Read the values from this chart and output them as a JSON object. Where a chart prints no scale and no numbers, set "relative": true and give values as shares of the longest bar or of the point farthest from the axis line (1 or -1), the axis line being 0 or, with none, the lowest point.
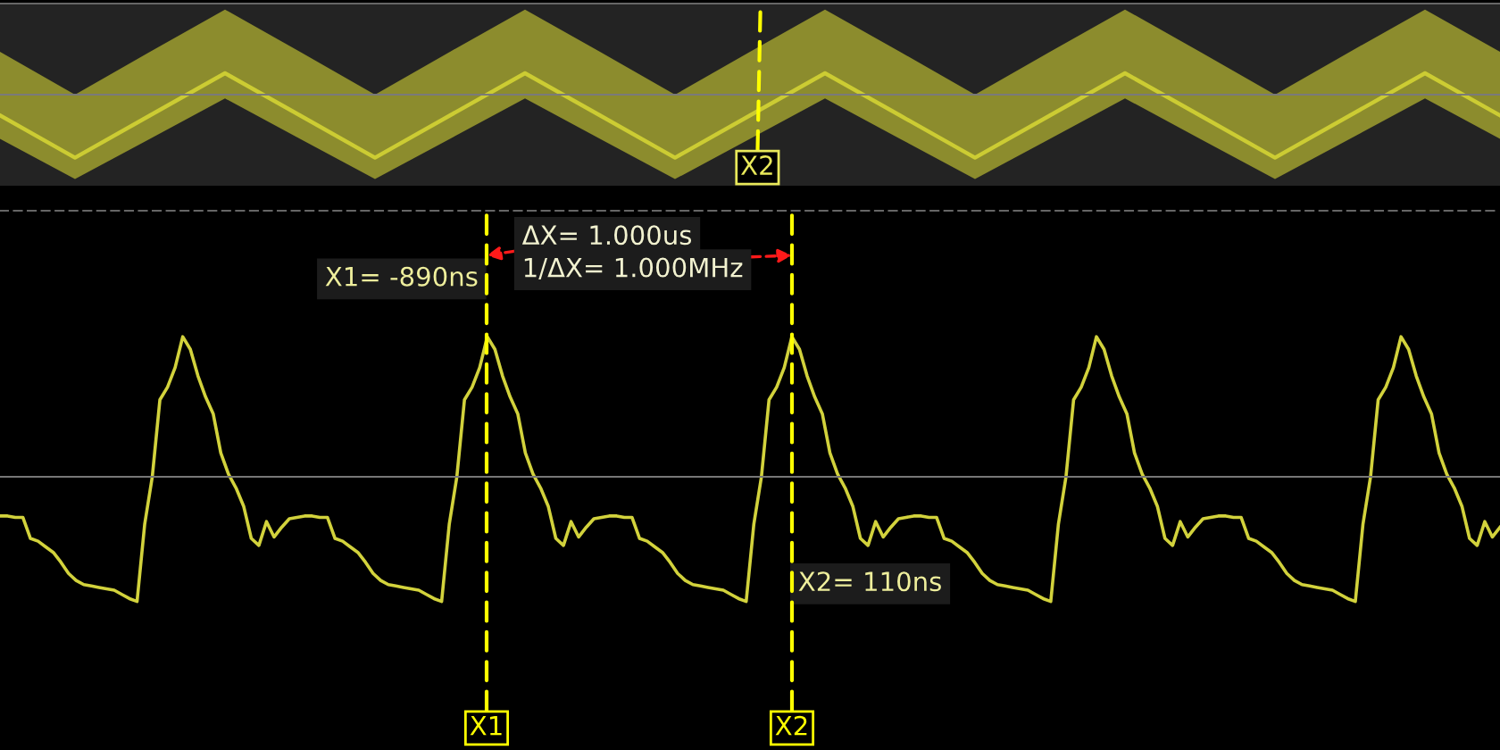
{
  "chart_data": [
    {
      "type": "line",
      "relative": true,
      "categories": [
        null,
        null,
        null,
        null,
        null,
        null,
        null,
        null,
        null,
        null,
        null,
        null,
        null,
        null,
        null,
        null,
        null,
        null,
        null,
        null,
        null
      ],
      "series": [
        {
          "color": "#cccc33",
          "values": [
            -0.33,
            -1.0,
            -0.33,
            0.34,
            -0.33,
            -1.0,
            -0.33,
            0.34,
            -0.33,
            -1.0,
            -0.33,
            0.34,
            -0.33,
            -1.0,
            -0.33,
            0.34,
            -0.33,
            -1.0,
            -0.33,
            0.34,
            -0.33
          ],
          "lower": [
            -0.7,
            -1.34,
            -0.7,
            -0.06,
            -0.7,
            -1.34,
            -0.7,
            -0.06,
            -0.7,
            -1.34,
            -0.7,
            -0.06,
            -0.7,
            -1.34,
            -0.7,
            -0.06,
            -0.7,
            -1.34,
            -0.7,
            -0.06,
            -0.7
          ],
          "upper": [
            0.68,
            0.0,
            0.68,
            1.35,
            0.68,
            0.0,
            0.68,
            1.35,
            0.68,
            0.0,
            0.68,
            1.35,
            0.68,
            0.0,
            0.68,
            1.35,
            0.68,
            0.0,
            0.68,
            1.35,
            0.68
          ]
        }
      ],
      "annotations": [
        "X2"
      ]
    },
    {
      "type": "line",
      "relative": true,
      "categories": [
        null,
        null,
        null,
        null,
        null,
        null,
        null,
        null,
        null,
        null,
        null,
        null,
        null,
        null,
        null,
        null,
        null,
        null,
        null,
        null,
        null,
        null,
        null,
        null,
        null,
        null,
        null,
        null,
        null,
        null,
        null,
        null,
        null,
        null,
        null,
        null,
        null,
        null,
        null,
        null,
        null,
        null,
        null,
        null,
        null,
        null,
        null,
        null,
        null,
        null,
        null,
        null,
        null,
        null,
        null,
        null,
        null,
        null,
        null,
        null,
        null,
        null,
        null,
        null,
        null,
        null,
        null,
        null,
        null,
        null,
        null,
        null,
        null,
        null,
        null,
        null,
        null,
        null,
        null,
        null,
        null,
        null,
        null,
        null,
        null,
        null,
        null,
        null,
        null,
        null,
        null,
        null,
        null,
        null,
        null,
        null,
        null,
        null,
        null,
        null,
        null,
        null,
        null,
        null,
        null,
        null,
        null,
        null,
        null,
        null,
        null,
        null,
        null,
        null,
        null,
        null,
        null,
        null,
        null,
        null,
        null,
        null,
        null,
        null,
        null,
        null,
        null,
        null,
        null,
        null,
        null,
        null,
        null,
        null,
        null,
        null,
        null,
        null,
        null,
        null,
        null,
        null,
        null,
        null,
        null,
        null,
        null,
        null,
        null,
        null,
        null,
        null,
        null,
        null,
        null,
        null,
        null,
        null,
        null,
        null,
        null,
        null,
        null,
        null,
        null,
        null,
        null,
        null,
        null,
        null,
        null,
        null,
        null,
        null,
        null,
        null,
        null,
        null,
        null,
        null,
        null,
        null,
        null,
        null,
        null,
        null,
        null,
        null,
        null,
        null,
        null,
        null,
        null,
        null,
        null,
        null,
        null,
        null
      ],
      "series": [
        {
          "color": "#d2d23c",
          "values": [
            -0.28,
            -0.28,
            -0.29,
            -0.29,
            -0.44,
            -0.46,
            -0.5,
            -0.54,
            -0.61,
            -0.69,
            -0.74,
            -0.77,
            -0.78,
            -0.79,
            -0.8,
            -0.81,
            -0.84,
            -0.87,
            -0.89,
            -0.34,
            0.0,
            0.55,
            0.64,
            0.78,
            1.0,
            0.91,
            0.72,
            0.57,
            0.45,
            0.17,
            0.02,
            -0.08,
            -0.21,
            -0.44,
            -0.49,
            -0.32,
            -0.43,
            -0.36,
            -0.3,
            -0.29,
            -0.28,
            -0.28,
            -0.29,
            -0.29,
            -0.44,
            -0.46,
            -0.5,
            -0.54,
            -0.61,
            -0.69,
            -0.74,
            -0.77,
            -0.78,
            -0.79,
            -0.8,
            -0.81,
            -0.84,
            -0.87,
            -0.89,
            -0.34,
            0.0,
            0.55,
            0.64,
            0.78,
            1.0,
            0.91,
            0.72,
            0.57,
            0.45,
            0.17,
            0.02,
            -0.08,
            -0.21,
            -0.44,
            -0.49,
            -0.32,
            -0.43,
            -0.36,
            -0.3,
            -0.29,
            -0.28,
            -0.28,
            -0.29,
            -0.29,
            -0.44,
            -0.46,
            -0.5,
            -0.54,
            -0.61,
            -0.69,
            -0.74,
            -0.77,
            -0.78,
            -0.79,
            -0.8,
            -0.81,
            -0.84,
            -0.87,
            -0.89,
            -0.34,
            0.0,
            0.55,
            0.64,
            0.78,
            1.0,
            0.91,
            0.72,
            0.57,
            0.45,
            0.17,
            0.02,
            -0.08,
            -0.21,
            -0.44,
            -0.49,
            -0.32,
            -0.43,
            -0.36,
            -0.3,
            -0.29,
            -0.28,
            -0.28,
            -0.29,
            -0.29,
            -0.44,
            -0.46,
            -0.5,
            -0.54,
            -0.61,
            -0.69,
            -0.74,
            -0.77,
            -0.78,
            -0.79,
            -0.8,
            -0.81,
            -0.84,
            -0.87,
            -0.89,
            -0.34,
            0.0,
            0.55,
            0.64,
            0.78,
            1.0,
            0.91,
            0.72,
            0.57,
            0.45,
            0.17,
            0.02,
            -0.08,
            -0.21,
            -0.44,
            -0.49,
            -0.32,
            -0.43,
            -0.36,
            -0.3,
            -0.29,
            -0.28,
            -0.28,
            -0.29,
            -0.29,
            -0.44,
            -0.46,
            -0.5,
            -0.54,
            -0.61,
            -0.69,
            -0.74,
            -0.77,
            -0.78,
            -0.79,
            -0.8,
            -0.81,
            -0.84,
            -0.87,
            -0.89,
            -0.34,
            0.0,
            0.55,
            0.64,
            0.78,
            1.0,
            0.91,
            0.72,
            0.57,
            0.45,
            0.17,
            0.02,
            -0.08,
            -0.21,
            -0.44,
            -0.49,
            -0.32,
            -0.43,
            -0.36
          ]
        }
      ],
      "annotations": [
        "X1= -890ns",
        "X2= 110ns",
        "ΔX= 1.000us",
        "1/ΔX= 1.000MHz",
        "X1",
        "X2"
      ]
    }
  ]
}
